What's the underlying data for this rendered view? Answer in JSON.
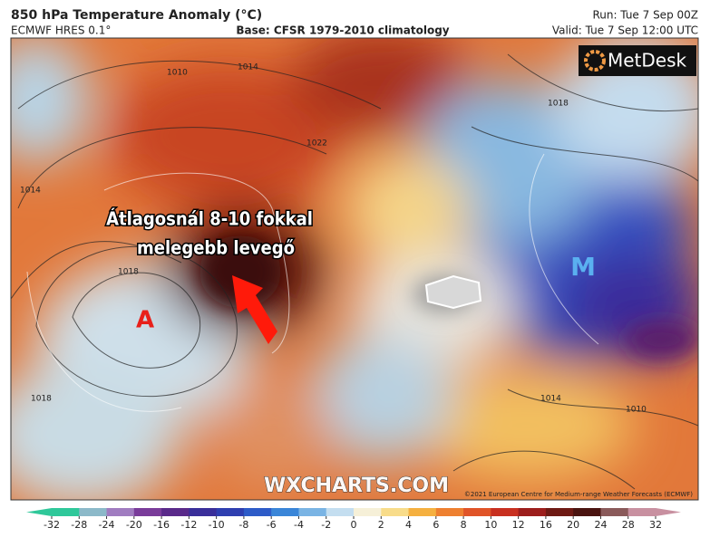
{
  "header": {
    "title": "850 hPa Temperature Anomaly (°C)",
    "model": "ECMWF HRES 0.1°",
    "base": "Base: CFSR 1979-2010 climatology",
    "run": "Run: Tue 7 Sep 00Z",
    "valid": "Valid: Tue 7 Sep 12:00 UTC"
  },
  "map": {
    "annotation": [
      "Átlagosnál 8-10 fokkal",
      "melegebb levegő"
    ],
    "high_label": "A",
    "low_label": "M",
    "watermark": "WXCHARTS.COM",
    "copyright": "©2021 European Centre for Medium-range Weather Forecasts (ECMWF)",
    "logo": "MetDesk",
    "contour_labels": [
      "1010",
      "1014",
      "1022",
      "1018",
      "1018",
      "1014",
      "1010",
      "1018",
      "1014"
    ]
  },
  "colorbar": {
    "ticks": [
      -32,
      -28,
      -24,
      -20,
      -16,
      -12,
      -10,
      -8,
      -6,
      -4,
      -2,
      0,
      2,
      4,
      6,
      8,
      10,
      12,
      16,
      20,
      24,
      28,
      32
    ],
    "colors": [
      "#2fc89a",
      "#8cb9c9",
      "#a07cc0",
      "#7a3c9a",
      "#5a2a8a",
      "#3a2f9a",
      "#2f3fb0",
      "#2e5cc8",
      "#3a86d8",
      "#7ab4e4",
      "#c4def0",
      "#f6f0d8",
      "#f8dc8a",
      "#f5b040",
      "#ee8030",
      "#e05428",
      "#c83020",
      "#9c1e1c",
      "#6e1a14",
      "#4a1410",
      "#8a5a5a",
      "#c890a0"
    ]
  }
}
